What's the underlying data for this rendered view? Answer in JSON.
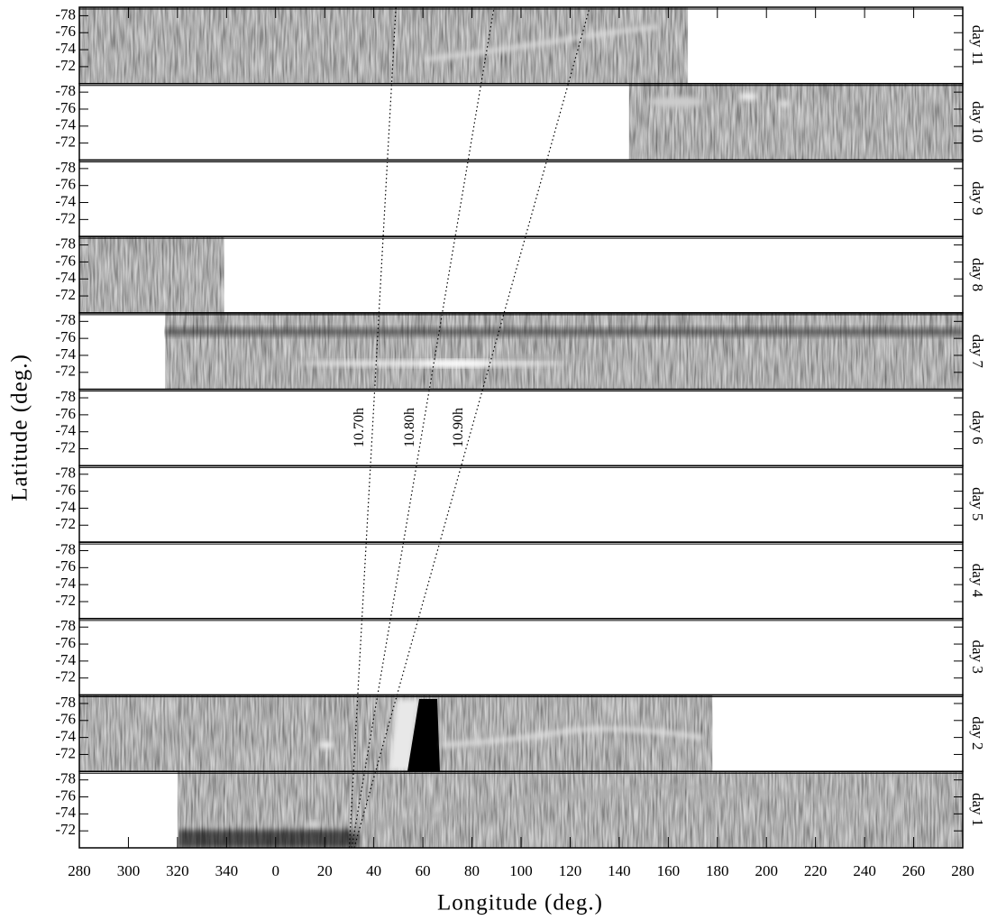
{
  "chart_data": {
    "type": "image-panels",
    "xlabel": "Longitude (deg.)",
    "ylabel": "Latitude (deg.)",
    "xlim": [
      280,
      640
    ],
    "xticks": [
      280,
      300,
      320,
      340,
      {
        "value": 360,
        "label": "0"
      },
      {
        "value": 380,
        "label": "20"
      },
      {
        "value": 400,
        "label": "40"
      },
      {
        "value": 420,
        "label": "60"
      },
      {
        "value": 440,
        "label": "80"
      },
      {
        "value": 460,
        "label": "100"
      },
      {
        "value": 480,
        "label": "120"
      },
      {
        "value": 500,
        "label": "140"
      },
      {
        "value": 520,
        "label": "160"
      },
      {
        "value": 540,
        "label": "180"
      },
      {
        "value": 560,
        "label": "200"
      },
      {
        "value": 580,
        "label": "220"
      },
      {
        "value": 600,
        "label": "240"
      },
      {
        "value": 620,
        "label": "260"
      },
      {
        "value": 640,
        "label": "280"
      }
    ],
    "ylim": [
      -79,
      -70
    ],
    "yticks": [
      -78,
      -76,
      -74,
      -72
    ],
    "panels": [
      {
        "label": "day 11",
        "coverage": [
          280,
          528
        ]
      },
      {
        "label": "day 10",
        "coverage": [
          504,
          640
        ]
      },
      {
        "label": "day 9",
        "coverage": null
      },
      {
        "label": "day 8",
        "coverage": [
          280,
          339
        ]
      },
      {
        "label": "day 7",
        "coverage": [
          315,
          640
        ]
      },
      {
        "label": "day 6",
        "coverage": null
      },
      {
        "label": "day 5",
        "coverage": null
      },
      {
        "label": "day 4",
        "coverage": null
      },
      {
        "label": "day 3",
        "coverage": null
      },
      {
        "label": "day 2",
        "coverage": [
          280,
          538
        ]
      },
      {
        "label": "day 1",
        "coverage": [
          320,
          640
        ]
      }
    ],
    "tracks": [
      {
        "label": "10.70h",
        "lon": [
          390,
          409
        ]
      },
      {
        "label": "10.80h",
        "lon": [
          391,
          449
        ]
      },
      {
        "label": "10.90h",
        "lon": [
          392,
          488
        ]
      }
    ]
  }
}
